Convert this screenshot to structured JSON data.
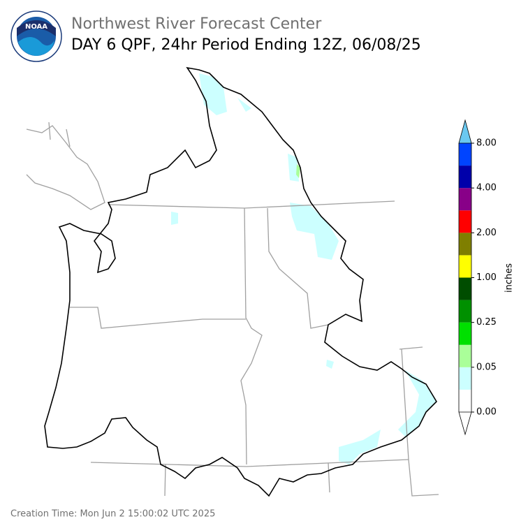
{
  "header": {
    "logo": "NOAA",
    "title": "Northwest River Forecast Center",
    "subtitle": "DAY 6 QPF, 24hr Period Ending 12Z, 06/08/25"
  },
  "colorbar": {
    "label": "inches",
    "colors": [
      "#ffffff",
      "#ccffff",
      "#aaff99",
      "#00e000",
      "#009000",
      "#004d00",
      "#ffff00",
      "#7f7f00",
      "#ff0000",
      "#880088",
      "#0000aa",
      "#0044ff"
    ],
    "under_color": "#ffffff",
    "over_color": "#6ac8f0",
    "ticks": [
      "0.00",
      "0.05",
      "0.25",
      "1.00",
      "2.00",
      "4.00",
      "8.00"
    ]
  },
  "footer": "Creation Time: Mon Jun 2 15:00:02 UTC 2025"
}
